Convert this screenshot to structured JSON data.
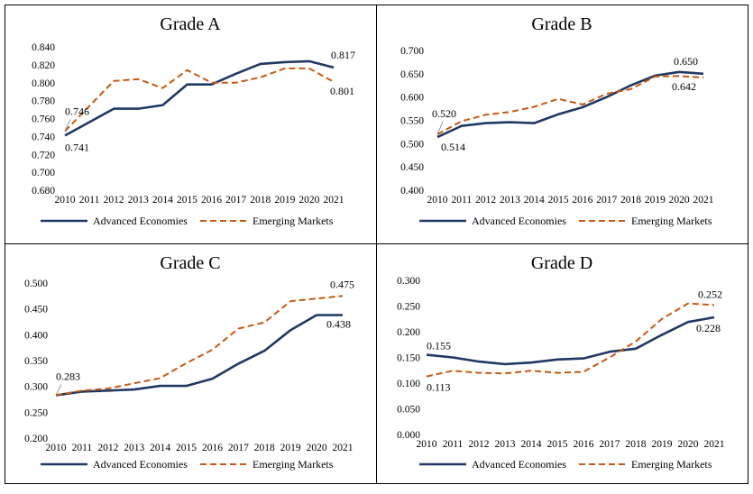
{
  "colors": {
    "advanced": "#203864",
    "emerging": "#C55A11",
    "border": "#000000"
  },
  "chart_data": [
    {
      "type": "line",
      "title": "Grade A",
      "categories": [
        "2010",
        "2011",
        "2012",
        "2013",
        "2014",
        "2015",
        "2016",
        "2017",
        "2018",
        "2019",
        "2020",
        "2021"
      ],
      "series": [
        {
          "name": "Advanced Economies",
          "values": [
            0.741,
            0.756,
            0.771,
            0.771,
            0.775,
            0.798,
            0.798,
            0.81,
            0.821,
            0.823,
            0.824,
            0.817
          ]
        },
        {
          "name": "Emerging Markets",
          "values": [
            0.746,
            0.774,
            0.802,
            0.804,
            0.794,
            0.814,
            0.8,
            0.8,
            0.806,
            0.816,
            0.816,
            0.801
          ]
        }
      ],
      "ylim": [
        0.68,
        0.84
      ],
      "yticks": [
        "0.680",
        "0.700",
        "0.720",
        "0.740",
        "0.760",
        "0.780",
        "0.800",
        "0.820",
        "0.840"
      ],
      "labels": [
        {
          "series": 0,
          "index": 0,
          "text": "0.741"
        },
        {
          "series": 1,
          "index": 0,
          "text": "0.746"
        },
        {
          "series": 0,
          "index": 11,
          "text": "0.817"
        },
        {
          "series": 1,
          "index": 11,
          "text": "0.801"
        }
      ],
      "legend": [
        "Advanced Economies",
        "Emerging Markets"
      ]
    },
    {
      "type": "line",
      "title": "Grade B",
      "categories": [
        "2010",
        "2011",
        "2012",
        "2013",
        "2014",
        "2015",
        "2016",
        "2017",
        "2018",
        "2019",
        "2020",
        "2021"
      ],
      "series": [
        {
          "name": "Advanced Economies",
          "values": [
            0.514,
            0.538,
            0.544,
            0.546,
            0.544,
            0.563,
            0.578,
            0.6,
            0.625,
            0.646,
            0.654,
            0.65
          ]
        },
        {
          "name": "Emerging Markets",
          "values": [
            0.52,
            0.548,
            0.562,
            0.568,
            0.579,
            0.596,
            0.584,
            0.607,
            0.617,
            0.644,
            0.645,
            0.642
          ]
        }
      ],
      "ylim": [
        0.4,
        0.7
      ],
      "yticks": [
        "0.400",
        "0.450",
        "0.500",
        "0.550",
        "0.600",
        "0.650",
        "0.700"
      ],
      "labels": [
        {
          "series": 0,
          "index": 0,
          "text": "0.514"
        },
        {
          "series": 1,
          "index": 0,
          "text": "0.520"
        },
        {
          "series": 0,
          "index": 11,
          "text": "0.650"
        },
        {
          "series": 1,
          "index": 11,
          "text": "0.642"
        }
      ],
      "legend": [
        "Advanced Economies",
        "Emerging Markets"
      ]
    },
    {
      "type": "line",
      "title": "Grade C",
      "categories": [
        "2010",
        "2011",
        "2012",
        "2013",
        "2014",
        "2015",
        "2016",
        "2017",
        "2018",
        "2019",
        "2020",
        "2021"
      ],
      "series": [
        {
          "name": "Advanced Economies",
          "values": [
            0.283,
            0.29,
            0.292,
            0.294,
            0.301,
            0.301,
            0.315,
            0.344,
            0.369,
            0.409,
            0.438,
            0.438
          ]
        },
        {
          "name": "Emerging Markets",
          "values": [
            0.283,
            0.292,
            0.296,
            0.306,
            0.316,
            0.345,
            0.371,
            0.412,
            0.424,
            0.465,
            0.47,
            0.475
          ]
        }
      ],
      "ylim": [
        0.2,
        0.5
      ],
      "yticks": [
        "0.200",
        "0.250",
        "0.300",
        "0.350",
        "0.400",
        "0.450",
        "0.500"
      ],
      "labels": [
        {
          "series": 0,
          "index": 0,
          "text": "0.283"
        },
        {
          "series": 1,
          "index": 11,
          "text": "0.475"
        },
        {
          "series": 0,
          "index": 11,
          "text": "0.438"
        }
      ],
      "legend": [
        "Advanced Economies",
        "Emerging Markets"
      ]
    },
    {
      "type": "line",
      "title": "Grade D",
      "categories": [
        "2010",
        "2011",
        "2012",
        "2013",
        "2014",
        "2015",
        "2016",
        "2017",
        "2018",
        "2019",
        "2020",
        "2021"
      ],
      "series": [
        {
          "name": "Advanced Economies",
          "values": [
            0.155,
            0.15,
            0.142,
            0.137,
            0.14,
            0.146,
            0.148,
            0.161,
            0.167,
            0.194,
            0.219,
            0.228
          ]
        },
        {
          "name": "Emerging Markets",
          "values": [
            0.113,
            0.124,
            0.12,
            0.119,
            0.124,
            0.12,
            0.122,
            0.15,
            0.181,
            0.225,
            0.255,
            0.252
          ]
        }
      ],
      "ylim": [
        0.0,
        0.3
      ],
      "yticks": [
        "0.000",
        "0.050",
        "0.100",
        "0.150",
        "0.200",
        "0.250",
        "0.300"
      ],
      "labels": [
        {
          "series": 0,
          "index": 0,
          "text": "0.155"
        },
        {
          "series": 1,
          "index": 0,
          "text": "0.113"
        },
        {
          "series": 1,
          "index": 11,
          "text": "0.252"
        },
        {
          "series": 0,
          "index": 11,
          "text": "0.228"
        }
      ],
      "legend": [
        "Advanced Economies",
        "Emerging Markets"
      ]
    }
  ]
}
